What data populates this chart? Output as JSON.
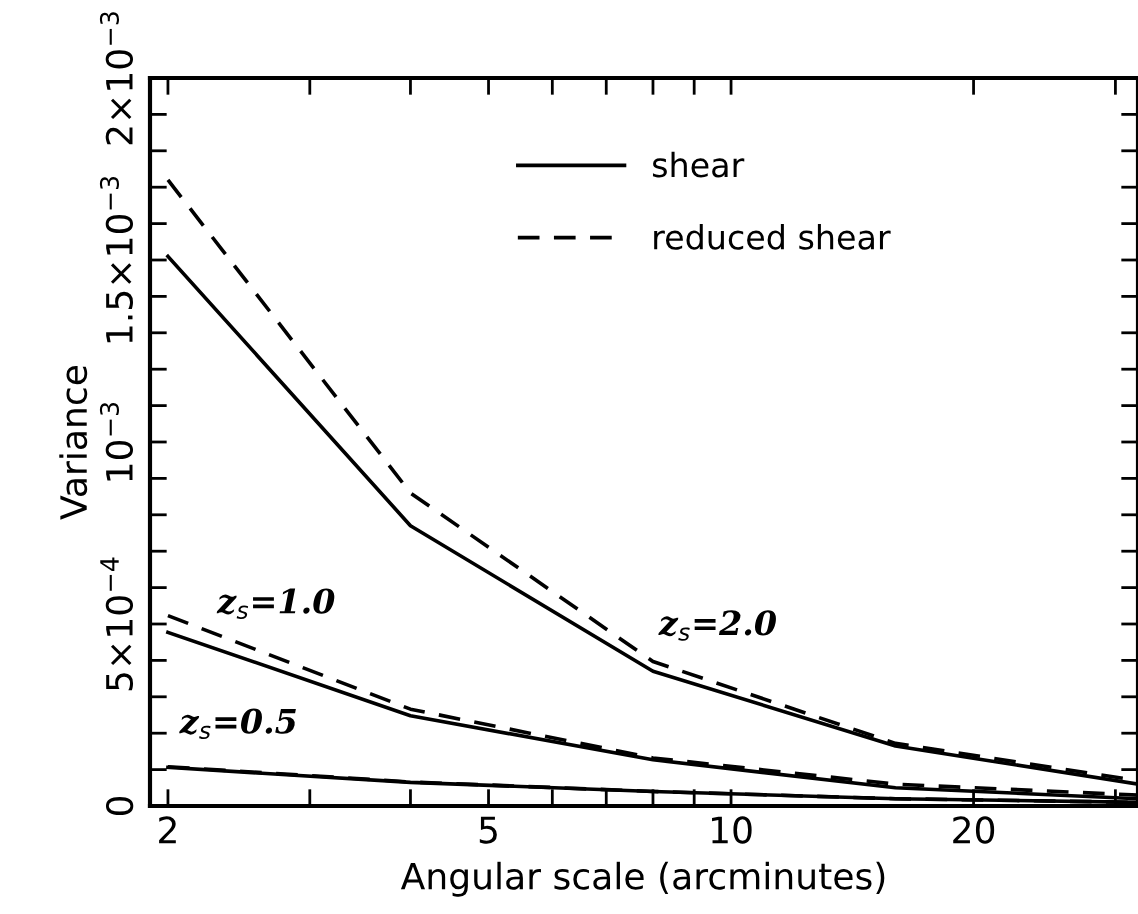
{
  "chart_data": {
    "type": "line",
    "xlabel": "Angular scale (arcminutes)",
    "ylabel": "Variance",
    "x": [
      2,
      4,
      8,
      16,
      32
    ],
    "series": [
      {
        "name": "shear",
        "color": "#000000",
        "line_style": "solid",
        "values": [
          0.00151,
          0.00077,
          0.00037,
          0.000165,
          6e-05
        ]
      },
      {
        "name": "reduced shear",
        "color": "#000000",
        "line_style": "dashed",
        "values": [
          0.00172,
          0.00086,
          0.000397,
          0.000172,
          7e-05
        ]
      },
      {
        "color": "#000000",
        "line_style": "solid",
        "values": [
          0.000477,
          0.000248,
          0.000127,
          5e-05,
          2e-05
        ]
      },
      {
        "color": "#000000",
        "line_style": "dashed",
        "values": [
          0.000523,
          0.000266,
          0.000132,
          6e-05,
          3e-05
        ]
      },
      {
        "color": "#000000",
        "line_style": "solid",
        "values": [
          0.000106,
          6.5e-05,
          4e-05,
          2e-05,
          1e-05
        ]
      },
      {
        "color": "#000000",
        "line_style": "dashed",
        "values": [
          0.000108,
          6.6e-05,
          4e-05,
          2e-05,
          1e-05
        ]
      }
    ],
    "log": "x",
    "xlim": [
      1.9,
      32
    ],
    "xticks": [
      2,
      {
        "value": 3,
        "label": null
      },
      {
        "value": 4,
        "label": null
      },
      5,
      {
        "value": 6,
        "label": null
      },
      {
        "value": 7,
        "label": null
      },
      {
        "value": 8,
        "label": null
      },
      {
        "value": 9,
        "label": null
      },
      10,
      20,
      {
        "value": 30,
        "label": null
      }
    ],
    "ylim": [
      0,
      0.002
    ],
    "yticks": [
      {
        "value": 0,
        "label": "0"
      },
      {
        "value": 0.0001,
        "label": null
      },
      {
        "value": 0.0002,
        "label": null
      },
      {
        "value": 0.0003,
        "label": null
      },
      {
        "value": 0.0004,
        "label": null
      },
      {
        "value": 0.0005,
        "label": "5×10$^{−4}$"
      },
      {
        "value": 0.0006,
        "label": null
      },
      {
        "value": 0.0007,
        "label": null
      },
      {
        "value": 0.0008,
        "label": null
      },
      {
        "value": 0.0009,
        "label": null
      },
      {
        "value": 0.001,
        "label": "10$^{−3}$"
      },
      {
        "value": 0.0011,
        "label": null
      },
      {
        "value": 0.0012,
        "label": null
      },
      {
        "value": 0.0013,
        "label": null
      },
      {
        "value": 0.0014,
        "label": null
      },
      {
        "value": 0.0015,
        "label": "1.5×10$^{−3}$"
      },
      {
        "value": 0.0016,
        "label": null
      },
      {
        "value": 0.0017,
        "label": null
      },
      {
        "value": 0.0018,
        "label": null
      },
      {
        "value": 0.0019,
        "label": null
      },
      {
        "value": 0.002,
        "label": "2×10$^{−3}$"
      }
    ],
    "annotations": [
      "z$_{s}$=0.5",
      "z$_{s}$=1.0",
      "z$_{s}$=2.0"
    ],
    "grid": false,
    "legend": "top right"
  }
}
